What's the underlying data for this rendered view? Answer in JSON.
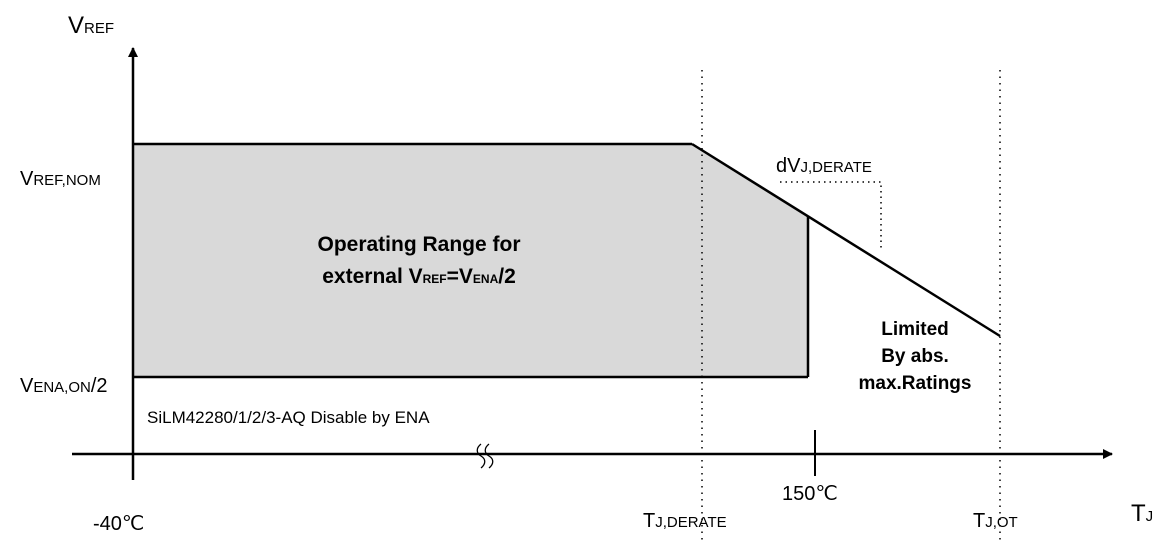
{
  "diagram": {
    "y_axis": {
      "main": "V",
      "sub": "REF"
    },
    "x_axis": {
      "main": "T",
      "sub": "J"
    },
    "y_labels": {
      "vref_nom": {
        "main": "V",
        "sub": "REF,NOM"
      },
      "vena_on": {
        "main": "V",
        "sub": "ENA,ON",
        "suffix": "/2"
      }
    },
    "x_labels": {
      "tmin": "-40℃",
      "tj_derate": {
        "main": "T",
        "sub": "J,DERATE"
      },
      "t150": "150℃",
      "tj_ot": {
        "main": "T",
        "sub": "J,OT"
      }
    },
    "derate_slope": {
      "main": "dV",
      "sub": "J,DERATE"
    },
    "region": {
      "line1": "Operating Range for",
      "line2_prefix": "external V",
      "line2_sub1": "REF",
      "line2_mid": "=V",
      "line2_sub2": "ENA",
      "line2_suffix": "/2",
      "fill_color": "#d9d9d9"
    },
    "disable_note": "SiLM42280/1/2/3-AQ Disable by ENA",
    "limited": [
      "Limited",
      "By abs.",
      "max.Ratings"
    ]
  }
}
